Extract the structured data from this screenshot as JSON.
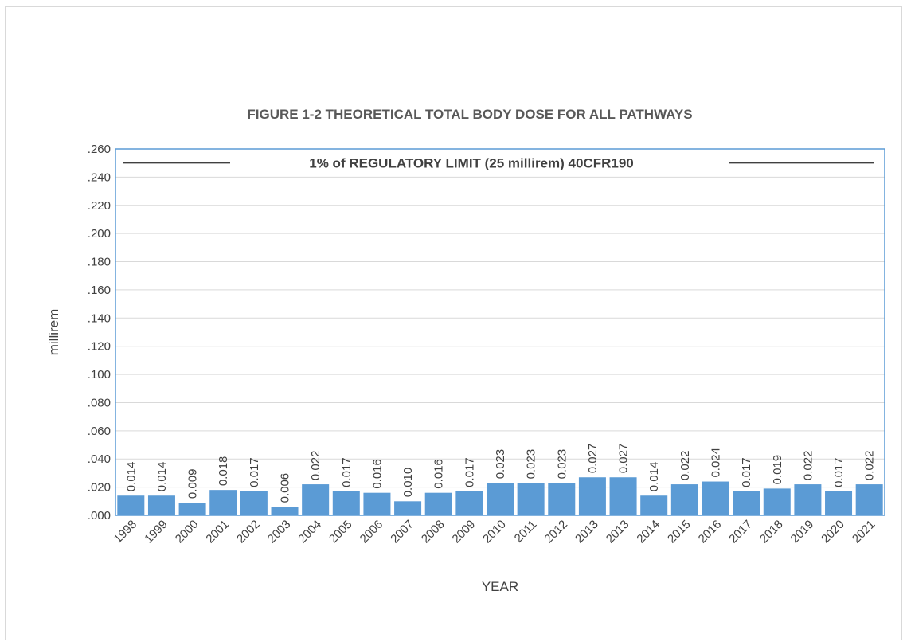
{
  "chart_data": {
    "type": "bar",
    "title": "FIGURE 1-2  THEORETICAL TOTAL BODY DOSE FOR ALL PATHWAYS",
    "xlabel": "YEAR",
    "ylabel": "millirem",
    "ylim": [
      0,
      0.26
    ],
    "y_ticks": [
      ".000",
      ".020",
      ".040",
      ".060",
      ".080",
      ".100",
      ".120",
      ".140",
      ".160",
      ".180",
      ".200",
      ".220",
      ".240",
      ".260"
    ],
    "grid": true,
    "categories": [
      "1998",
      "1999",
      "2000",
      "2001",
      "2002",
      "2003",
      "2004",
      "2005",
      "2006",
      "2007",
      "2008",
      "2009",
      "2010",
      "2011",
      "2012",
      "2013",
      "2013",
      "2014",
      "2015",
      "2016",
      "2017",
      "2018",
      "2019",
      "2020",
      "2021"
    ],
    "values": [
      0.014,
      0.014,
      0.009,
      0.018,
      0.017,
      0.006,
      0.022,
      0.017,
      0.016,
      0.01,
      0.016,
      0.017,
      0.023,
      0.023,
      0.023,
      0.027,
      0.027,
      0.014,
      0.022,
      0.024,
      0.017,
      0.019,
      0.022,
      0.017,
      0.022
    ],
    "data_labels": [
      "0.014",
      "0.014",
      "0.009",
      "0.018",
      "0.017",
      "0.006",
      "0.022",
      "0.017",
      "0.016",
      "0.010",
      "0.016",
      "0.017",
      "0.023",
      "0.023",
      "0.023",
      "0.027",
      "0.027",
      "0.014",
      "0.022",
      "0.024",
      "0.017",
      "0.019",
      "0.022",
      "0.017",
      "0.022"
    ],
    "bar_color": "#5b9bd5",
    "plot_border_color": "#5b9bd5",
    "annotation": {
      "text": "1% of REGULATORY LIMIT (25 millirem) 40CFR190",
      "y": 0.25
    }
  }
}
